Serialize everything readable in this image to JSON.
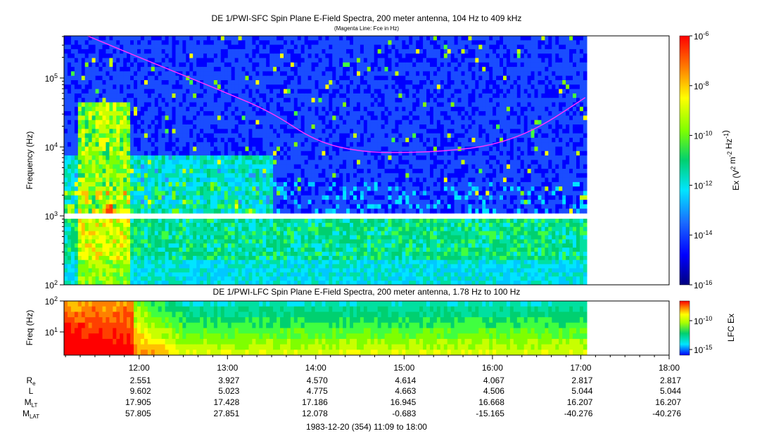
{
  "chart_data": [
    {
      "type": "heatmap",
      "title": "DE 1/PWI-SFC  Spin Plane E-Field Spectra, 200 meter antenna, 104 Hz to 409 kHz",
      "subtitle": "(Magenta Line: Fce in Hz)",
      "ylabel": "Frequency (Hz)",
      "yscale": "log",
      "ylim": [
        100,
        409000
      ],
      "ytick_labels": [
        "10^2",
        "10^3",
        "10^4",
        "10^5"
      ],
      "colorbar": {
        "label": "Ex (V^2 m^-2 Hz^-1)",
        "scale": "log",
        "range": [
          1e-16,
          1e-06
        ],
        "tick_labels": [
          "10^-16",
          "10^-14",
          "10^-12",
          "10^-10",
          "10^-8",
          "10^-6"
        ]
      },
      "series": [
        {
          "name": "Fce",
          "color": "#ff33ff",
          "points": [
            [
              "11:25",
              409000
            ],
            [
              "11:40",
              300000
            ],
            [
              "12:00",
              200000
            ],
            [
              "12:30",
              110000
            ],
            [
              "13:00",
              60000
            ],
            [
              "13:30",
              32000
            ],
            [
              "14:00",
              12000
            ],
            [
              "14:30",
              8500
            ],
            [
              "15:00",
              8200
            ],
            [
              "15:30",
              8800
            ],
            [
              "16:00",
              10500
            ],
            [
              "16:30",
              18000
            ],
            [
              "17:03",
              52000
            ]
          ]
        }
      ]
    },
    {
      "type": "heatmap",
      "title": "DE 1/PWI-LFC  Spin Plane E-Field Spectra, 200 meter antenna, 1.78 Hz to 100 Hz",
      "ylabel": "Freq (Hz)",
      "yscale": "log",
      "ylim": [
        1.78,
        100
      ],
      "ytick_labels": [
        "10^1",
        "10^2"
      ],
      "colorbar": {
        "label": "LFC Ex",
        "scale": "log",
        "tick_labels": [
          "10^-15",
          "10^-10"
        ]
      }
    }
  ],
  "x_axis": {
    "range": [
      "11:09",
      "18:00"
    ],
    "tick_labels": [
      "12:00",
      "13:00",
      "14:00",
      "15:00",
      "16:00",
      "17:00",
      "18:00"
    ],
    "caption": "1983-12-20 (354) 11:09 to 18:00"
  },
  "ephemeris": [
    {
      "label": "R",
      "sub": "e",
      "values": [
        "2.551",
        "3.927",
        "4.570",
        "4.614",
        "4.067",
        "2.817",
        "2.817"
      ]
    },
    {
      "label": "L",
      "sub": "",
      "values": [
        "9.602",
        "5.023",
        "4.775",
        "4.663",
        "4.506",
        "5.044",
        "5.044"
      ]
    },
    {
      "label": "M",
      "sub": "LT",
      "values": [
        "17.905",
        "17.428",
        "17.186",
        "16.945",
        "16.668",
        "16.207",
        "16.207"
      ]
    },
    {
      "label": "M",
      "sub": "LAT",
      "values": [
        "57.805",
        "27.851",
        "12.078",
        "-0.683",
        "-15.165",
        "-40.276",
        "-40.276"
      ]
    }
  ]
}
